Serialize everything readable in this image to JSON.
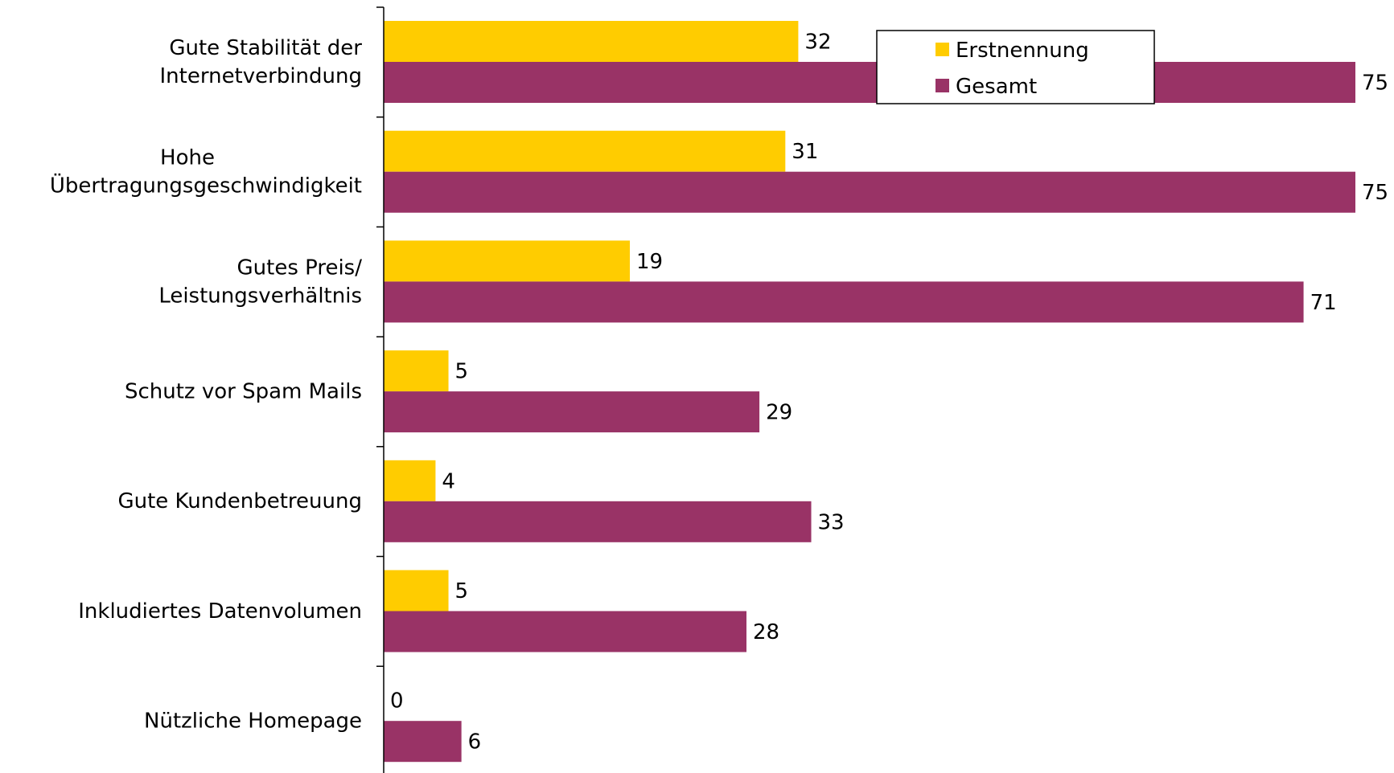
{
  "chart_data": {
    "type": "bar",
    "orientation": "horizontal",
    "categories": [
      [
        "Gute Stabilität der",
        "Internetverbindung"
      ],
      [
        "Hohe",
        "Übertragungsgeschwindigkeit"
      ],
      [
        "Gutes Preis/",
        "Leistungsverhältnis"
      ],
      [
        "Schutz vor Spam Mails"
      ],
      [
        "Gute Kundenbetreuung"
      ],
      [
        "Inkludiertes Datenvolumen"
      ],
      [
        "Nützliche Homepage"
      ]
    ],
    "series": [
      {
        "name": "Erstnennung",
        "color": "#FFCC00",
        "values": [
          32,
          31,
          19,
          5,
          4,
          5,
          0
        ]
      },
      {
        "name": "Gesamt",
        "color": "#993366",
        "values": [
          75,
          75,
          71,
          29,
          33,
          28,
          6
        ]
      }
    ],
    "xlim": [
      0,
      75
    ],
    "data_labels": true,
    "legend": {
      "position": "top-right",
      "entries": [
        "Erstnennung",
        "Gesamt"
      ]
    },
    "grid": false
  }
}
